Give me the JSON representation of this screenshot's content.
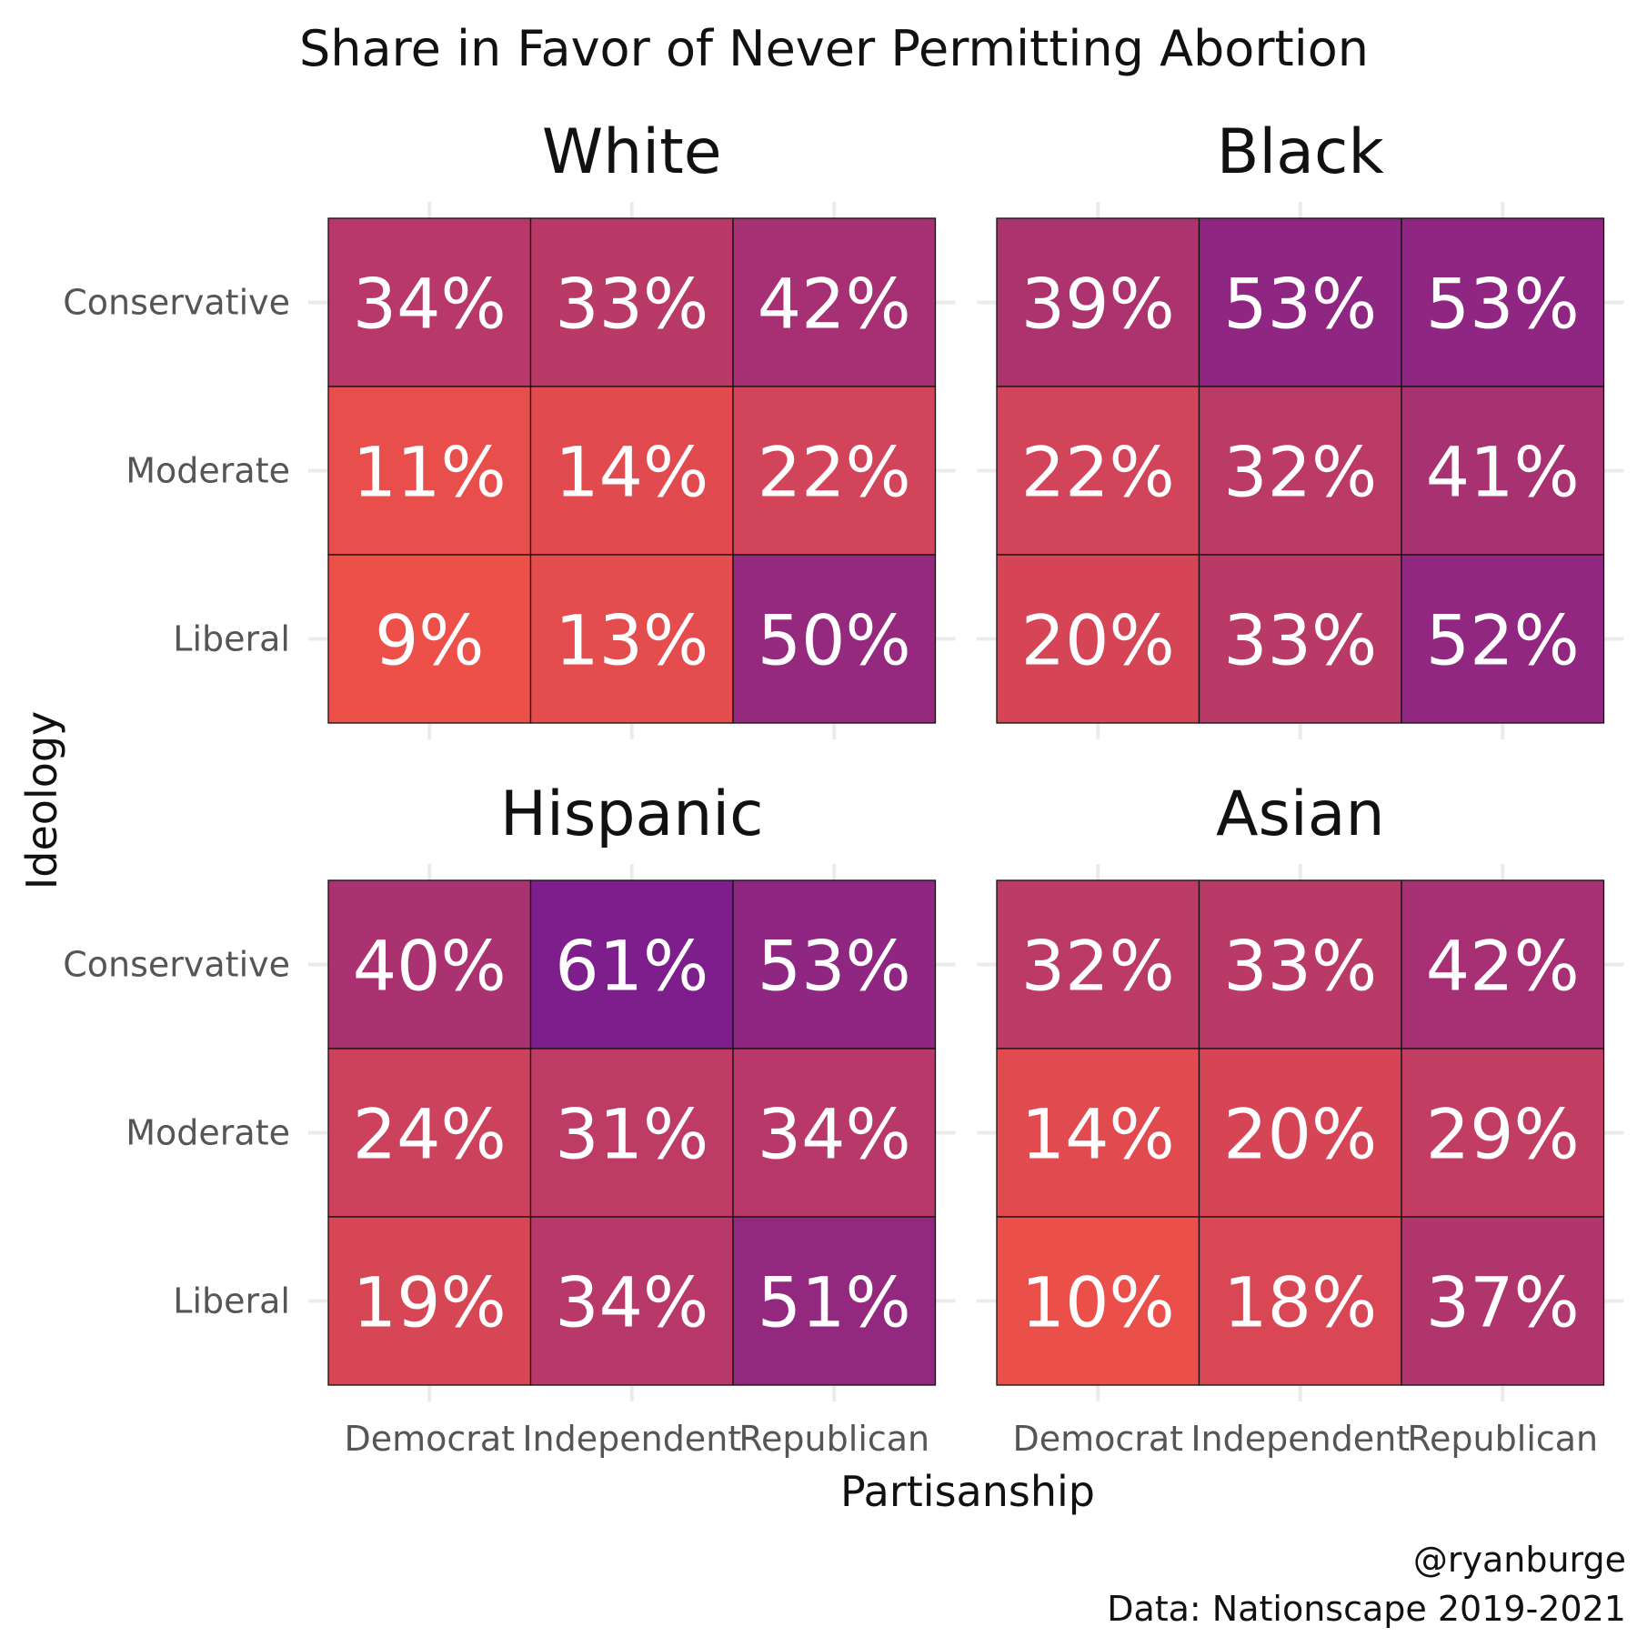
{
  "chart_data": {
    "type": "heatmap",
    "title": "Share in Favor of Never Permitting Abortion",
    "xlabel": "Partisanship",
    "ylabel": "Ideology",
    "x_categories": [
      "Democrat",
      "Independent",
      "Republican"
    ],
    "y_categories": [
      "Conservative",
      "Moderate",
      "Liberal"
    ],
    "value_format": "percent",
    "color_scale": {
      "low": "#ec5048",
      "high": "#7e1e8c",
      "min": 9,
      "max": 61
    },
    "caption": [
      "@ryanburge",
      "Data: Nationscape 2019-2021"
    ],
    "facets": [
      {
        "name": "White",
        "values": [
          [
            34,
            33,
            42
          ],
          [
            11,
            14,
            22
          ],
          [
            9,
            13,
            50
          ]
        ],
        "labels": [
          [
            "34%",
            "33%",
            "42%"
          ],
          [
            "11%",
            "14%",
            "22%"
          ],
          [
            "9%",
            "13%",
            "50%"
          ]
        ]
      },
      {
        "name": "Black",
        "values": [
          [
            39,
            53,
            53
          ],
          [
            22,
            32,
            41
          ],
          [
            20,
            33,
            52
          ]
        ],
        "labels": [
          [
            "39%",
            "53%",
            "53%"
          ],
          [
            "22%",
            "32%",
            "41%"
          ],
          [
            "20%",
            "33%",
            "52%"
          ]
        ]
      },
      {
        "name": "Hispanic",
        "values": [
          [
            40,
            61,
            53
          ],
          [
            24,
            31,
            34
          ],
          [
            19,
            34,
            51
          ]
        ],
        "labels": [
          [
            "40%",
            "61%",
            "53%"
          ],
          [
            "24%",
            "31%",
            "34%"
          ],
          [
            "19%",
            "34%",
            "51%"
          ]
        ]
      },
      {
        "name": "Asian",
        "values": [
          [
            32,
            33,
            42
          ],
          [
            14,
            20,
            29
          ],
          [
            10,
            18,
            37
          ]
        ],
        "labels": [
          [
            "32%",
            "33%",
            "42%"
          ],
          [
            "14%",
            "20%",
            "29%"
          ],
          [
            "10%",
            "18%",
            "37%"
          ]
        ]
      }
    ]
  }
}
